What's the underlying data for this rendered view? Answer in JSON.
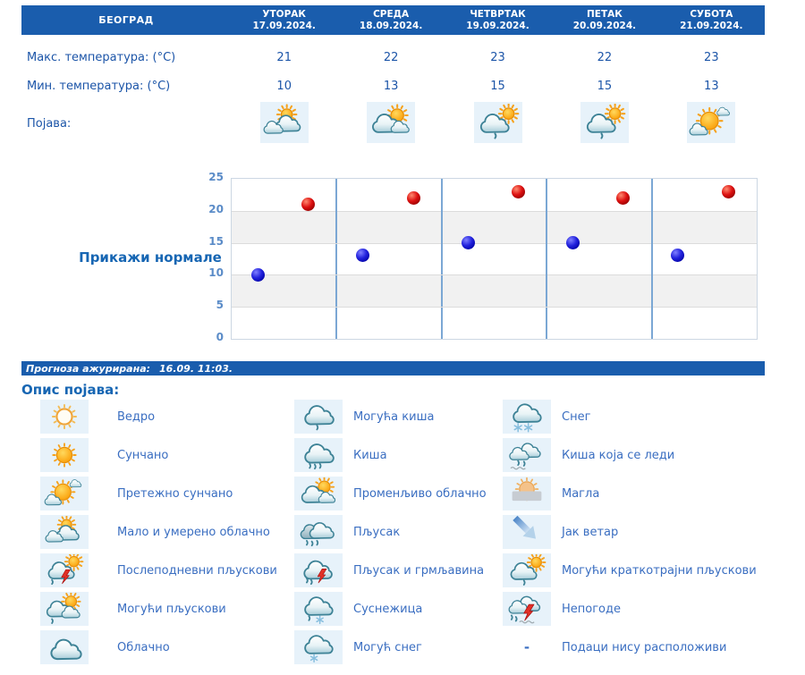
{
  "colors": {
    "header_blue": "#1a5dad",
    "text_blue": "#1c55a8",
    "link_blue": "#1766b3",
    "legend_label_blue": "#3a6ec1",
    "tick_blue": "#5b8cc8",
    "band_gray": "#f1f1f1",
    "day_separator_blue": "#7ba7d4",
    "icon_box_bg": "#e7f2fa",
    "max_dot_red": "#cc1111",
    "min_dot_blue": "#1111cc"
  },
  "header": {
    "location": "БЕОГРАД",
    "days": [
      {
        "name": "УТОРАК",
        "date": "17.09.2024."
      },
      {
        "name": "СРЕДА",
        "date": "18.09.2024."
      },
      {
        "name": "ЧЕТВРТАК",
        "date": "19.09.2024."
      },
      {
        "name": "ПЕТАК",
        "date": "20.09.2024."
      },
      {
        "name": "СУБОТА",
        "date": "21.09.2024."
      }
    ]
  },
  "table": {
    "max_label": "Макс. температура: (°C)",
    "min_label": "Мин. температура: (°C)",
    "phenomenon_label": "Појава:",
    "max_values": [
      "21",
      "22",
      "23",
      "22",
      "23"
    ],
    "min_values": [
      "10",
      "13",
      "15",
      "15",
      "13"
    ],
    "phenomenon_icons": [
      "clouds-sun",
      "clouds-sun-peek",
      "cloud-sun-drop",
      "cloud-sun-drop",
      "sun-small-cloud"
    ]
  },
  "chart_data": {
    "type": "scatter",
    "title": "",
    "categories": [
      "17.09.2024.",
      "18.09.2024.",
      "19.09.2024.",
      "20.09.2024.",
      "21.09.2024."
    ],
    "series": [
      {
        "name": "Макс. температура (°C)",
        "color": "#cc1111",
        "values": [
          21,
          22,
          23,
          22,
          23
        ]
      },
      {
        "name": "Мин. температура (°C)",
        "color": "#1111cc",
        "values": [
          10,
          13,
          15,
          15,
          13
        ]
      }
    ],
    "ylim": [
      0,
      25
    ],
    "yticks": [
      0,
      5,
      10,
      15,
      20,
      25
    ],
    "grid": true,
    "legend_position": "none"
  },
  "normals_button": "Прикажи нормале",
  "status_bar": {
    "label": "Прогноза ажурирана:",
    "time": "16.09. 11:03."
  },
  "legend": {
    "title": "Опис појава:",
    "columns": [
      [
        {
          "icon": "sun-outline",
          "label": "Ведро"
        },
        {
          "icon": "sun",
          "label": "Сунчано"
        },
        {
          "icon": "sun-small-cloud",
          "label": "Претежно сунчано"
        },
        {
          "icon": "clouds-sun",
          "label": "Мало и умерено облачно"
        },
        {
          "icon": "cloud-sun-lightning",
          "label": "Послеподневни пљускови"
        },
        {
          "icon": "cloud-sun-drop-b",
          "label": "Могући пљускови"
        },
        {
          "icon": "cloud",
          "label": "Облачно"
        }
      ],
      [
        {
          "icon": "cloud-drop",
          "label": "Могућа киша"
        },
        {
          "icon": "cloud-rain",
          "label": "Киша"
        },
        {
          "icon": "clouds-sun-peek",
          "label": "Променљиво облачно"
        },
        {
          "icon": "dark-clouds-rain",
          "label": "Пљусак"
        },
        {
          "icon": "cloud-lightning-rain",
          "label": "Пљусак и грмљавина"
        },
        {
          "icon": "cloud-rain-snowflake",
          "label": "Суснежица"
        },
        {
          "icon": "cloud-snowflake",
          "label": "Могућ снег"
        }
      ],
      [
        {
          "icon": "cloud-two-snowflakes",
          "label": "Снег"
        },
        {
          "icon": "cloud-freezing-rain",
          "label": "Киша која се леди"
        },
        {
          "icon": "fog",
          "label": "Магла"
        },
        {
          "icon": "wind-arrow",
          "label": "Јак ветар"
        },
        {
          "icon": "cloud-sun-drop",
          "label": "Могући краткотрајни пљускови"
        },
        {
          "icon": "storm",
          "label": "Непогоде"
        },
        {
          "icon": "dash",
          "label": "Подаци нису расположиви"
        }
      ]
    ]
  }
}
